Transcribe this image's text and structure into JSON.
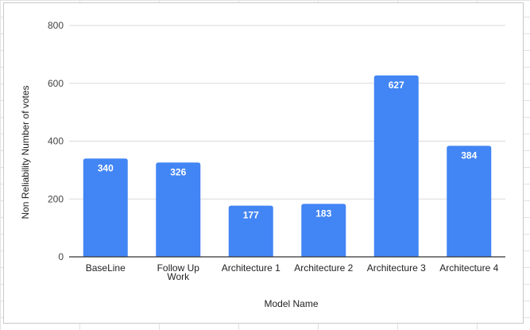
{
  "chart_data": {
    "type": "bar",
    "title": "",
    "xlabel": "Model Name",
    "ylabel": "Non Reliability Number of votes",
    "categories": [
      [
        "BaseLine"
      ],
      [
        "Follow Up",
        "Work"
      ],
      [
        "Architecture 1"
      ],
      [
        "Architecture 2"
      ],
      [
        "Architecture 3"
      ],
      [
        "Architecture 4"
      ]
    ],
    "series": [
      {
        "values": [
          340,
          326,
          177,
          183,
          627,
          384
        ]
      }
    ],
    "data_labels": [
      "340",
      "326",
      "177",
      "183",
      "627",
      "384"
    ],
    "ylim": [
      0,
      800
    ],
    "yticks": [
      0,
      200,
      400,
      600,
      800
    ],
    "grid": true,
    "legend": "none",
    "colors": {
      "bar": "#4285f4",
      "grid": "#dadada",
      "axis": "#333333"
    }
  }
}
